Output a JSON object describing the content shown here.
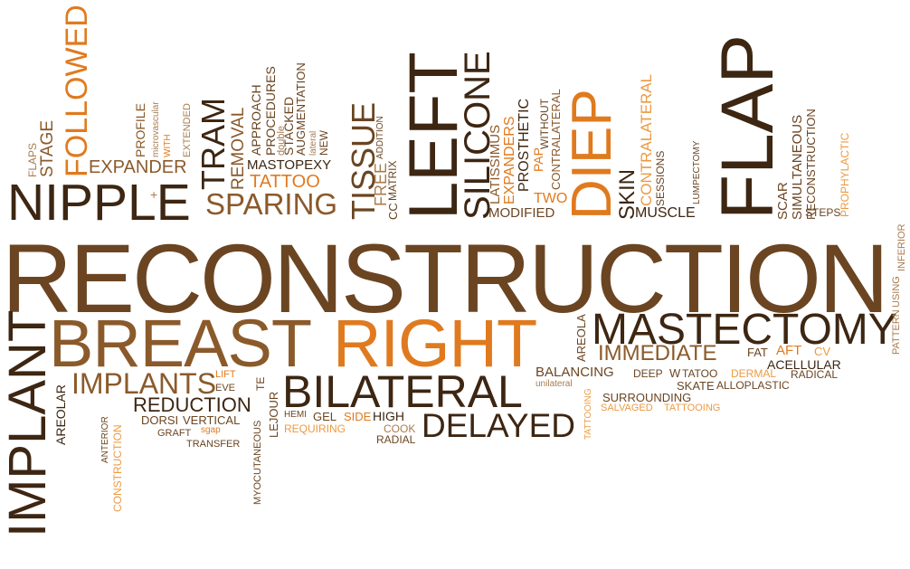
{
  "words": {
    "reconstruction": "RECONSTRUCTION",
    "breast": "BREAST",
    "right": "RIGHT",
    "mastectomy": "MASTECTOMY",
    "implant": "IMPLANT",
    "bilateral": "BILATERAL",
    "delayed": "DELAYED",
    "nipple": "NIPPLE",
    "flap": "FLAP",
    "diep": "DIEP",
    "left": "LEFT",
    "silicone": "SILICONE",
    "sparing": "SPARING",
    "tissue": "TISSUE",
    "followed": "FOLLOWED",
    "tram": "TRAM",
    "expander": "EXPANDER",
    "implants": "IMPLANTS",
    "immediate": "IMMEDIATE",
    "reduction": "REDUCTION",
    "tattoo": "TATTOO",
    "mastopexy": "MASTOPEXY",
    "removal": "REMOVAL",
    "approach": "APPROACH",
    "procedures": "PROCEDURES",
    "stacked": "STACKED",
    "augmentation": "AUGMENTATION",
    "double": "double",
    "lateral": "lateral",
    "new": "NEW",
    "free": "FREE",
    "addition": "ADDITION",
    "cc": "CC",
    "matrix": "MATRIX",
    "latissimus": "LATISSIMUS",
    "expanders": "EXPANDERS",
    "prosthetic": "PROSTHETIC",
    "pap": "PAP",
    "two": "TWO",
    "without": "WITHOUT",
    "contralateral_gray": "CONTRALATERAL",
    "modified": "MODIFIED",
    "skin": "SKIN",
    "contralateral_orange": "CONTRALATERAL",
    "sessions": "SESSIONS",
    "muscle": "MUSCLE",
    "lumpectomy": "LUMPECTOMY",
    "scar": "SCAR",
    "simultaneous": "SIMULTANEOUS",
    "reconstruction_small": "RECONSTRUCTION",
    "steps": "STEPS",
    "prophylactic": "PROPHYLACTIC",
    "pattern": "PATTERN",
    "using": "USING",
    "inferior": "INFERIOR",
    "flaps": "FLAPS",
    "stage": "STAGE",
    "profile": "PROFILE",
    "microvascular": "microvascular",
    "with": "WITH",
    "extended": "EXTENDED",
    "areola": "AREOLA",
    "fat": "FAT",
    "aft": "AFT",
    "cv": "CV",
    "acellular": "ACELLULAR",
    "balancing": "BALANCING",
    "deep": "DEEP",
    "w": "W",
    "tatoo": "TATOO",
    "dermal": "DERMAL",
    "radical": "RADICAL",
    "unilateral": "unilateral",
    "skate": "SKATE",
    "alloplastic": "ALLOPLASTIC",
    "tattooing_vert": "TATTOOING",
    "surrounding": "SURROUNDING",
    "salvaged": "SALVAGED",
    "tattooing": "TATTOOING",
    "areolar": "AREOLAR",
    "anterior": "ANTERIOR",
    "construction": "CONSTRUCTION",
    "lift": "LIFT",
    "eve": "EVE",
    "sgap": "sgap",
    "dorsi": "DORSI",
    "vertical": "VERTICAL",
    "graft": "GRAFT",
    "transfer": "TRANSFER",
    "myocutaneous": "MYOCUTANEOUS",
    "te": "TE",
    "lejour": "LEJOUR",
    "hemi": "HEMI",
    "gel": "GEL",
    "side": "SIDE",
    "high": "HIGH",
    "requiring": "REQUIRING",
    "cook": "COOK",
    "radial": "RADIAL",
    "plus": "+"
  }
}
